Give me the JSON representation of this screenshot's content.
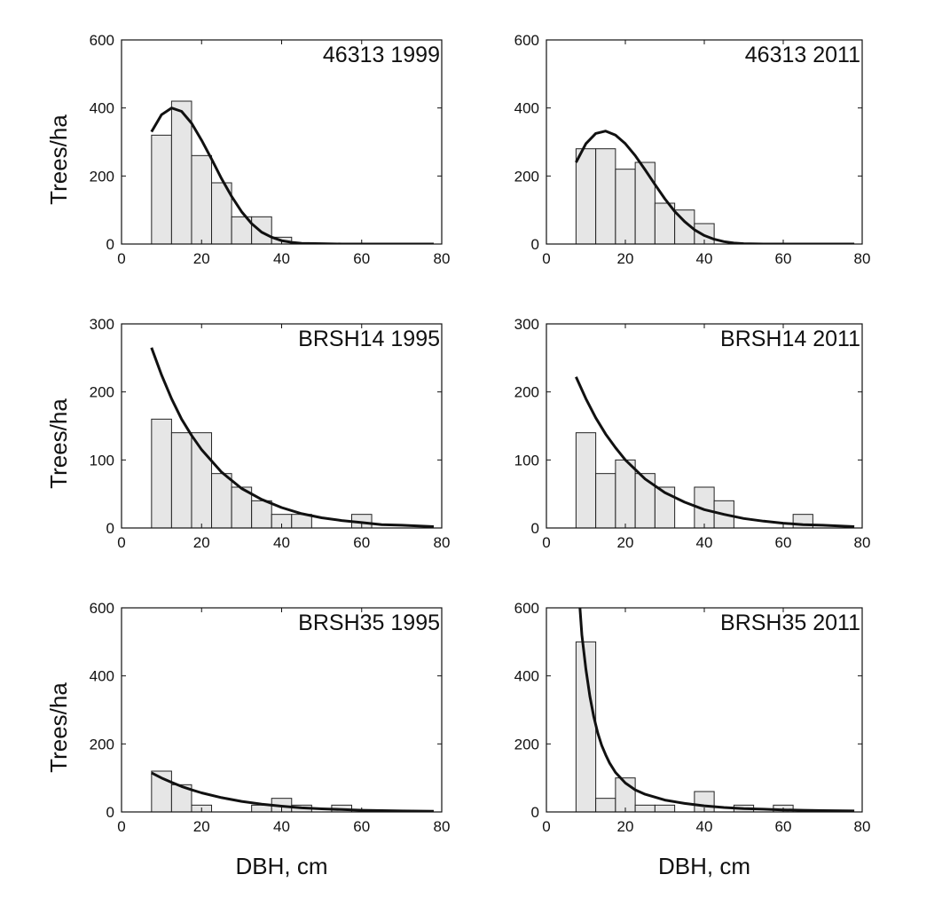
{
  "figure": {
    "colors": {
      "bar_fill": "#e6e6e6",
      "bar_stroke": "#222222",
      "curve": "#111111",
      "frame": "#111111"
    }
  },
  "chart_data": [
    {
      "type": "bar",
      "title": "46313 1999",
      "ylabel": "Trees/ha",
      "xlabel": "",
      "xlim": [
        0,
        80
      ],
      "ylim": [
        0,
        600
      ],
      "xticks": [
        "0",
        "20",
        "40",
        "60",
        "80"
      ],
      "yticks": [
        "0",
        "200",
        "400",
        "600"
      ],
      "bin_width": 5,
      "bin_starts": [
        7.5,
        12.5,
        17.5,
        22.5,
        27.5,
        32.5,
        37.5
      ],
      "values": [
        320,
        420,
        260,
        180,
        80,
        80,
        20
      ],
      "fit_curve": {
        "x": [
          7.5,
          10,
          12.5,
          15,
          17.5,
          20,
          22.5,
          25,
          27.5,
          30,
          32.5,
          35,
          37.5,
          40,
          42.5,
          45,
          50,
          55,
          60,
          65,
          70,
          78
        ],
        "y": [
          330,
          380,
          400,
          390,
          355,
          305,
          250,
          192,
          140,
          95,
          60,
          35,
          20,
          10,
          5,
          2,
          1,
          0,
          0,
          0,
          0,
          0
        ]
      }
    },
    {
      "type": "bar",
      "title": "46313 2011",
      "ylabel": "",
      "xlabel": "",
      "xlim": [
        0,
        80
      ],
      "ylim": [
        0,
        600
      ],
      "xticks": [
        "0",
        "20",
        "40",
        "60",
        "80"
      ],
      "yticks": [
        "0",
        "200",
        "400",
        "600"
      ],
      "bin_width": 5,
      "bin_starts": [
        7.5,
        12.5,
        17.5,
        22.5,
        27.5,
        32.5,
        37.5
      ],
      "values": [
        280,
        280,
        220,
        240,
        120,
        100,
        60
      ],
      "fit_curve": {
        "x": [
          7.5,
          10,
          12.5,
          15,
          17.5,
          20,
          22.5,
          25,
          27.5,
          30,
          32.5,
          35,
          37.5,
          40,
          42.5,
          45,
          47.5,
          50,
          55,
          60,
          65,
          70,
          78
        ],
        "y": [
          240,
          295,
          325,
          332,
          320,
          295,
          260,
          218,
          175,
          133,
          96,
          66,
          42,
          25,
          14,
          7,
          3,
          1,
          0,
          0,
          0,
          0,
          0
        ]
      }
    },
    {
      "type": "bar",
      "title": "BRSH14 1995",
      "ylabel": "Trees/ha",
      "xlabel": "",
      "xlim": [
        0,
        80
      ],
      "ylim": [
        0,
        300
      ],
      "xticks": [
        "0",
        "20",
        "40",
        "60",
        "80"
      ],
      "yticks": [
        "0",
        "100",
        "200",
        "300"
      ],
      "bin_width": 5,
      "bin_starts": [
        7.5,
        12.5,
        17.5,
        22.5,
        27.5,
        32.5,
        37.5,
        42.5,
        57.5
      ],
      "values": [
        160,
        140,
        140,
        80,
        60,
        40,
        20,
        20,
        20
      ],
      "fit_curve": {
        "x": [
          7.5,
          10,
          12.5,
          15,
          17.5,
          20,
          25,
          30,
          35,
          40,
          45,
          50,
          55,
          60,
          65,
          70,
          78
        ],
        "y": [
          265,
          225,
          190,
          160,
          136,
          115,
          82,
          58,
          42,
          30,
          21,
          15,
          11,
          8,
          5,
          4,
          2
        ]
      }
    },
    {
      "type": "bar",
      "title": "BRSH14 2011",
      "ylabel": "",
      "xlabel": "",
      "xlim": [
        0,
        80
      ],
      "ylim": [
        0,
        300
      ],
      "xticks": [
        "0",
        "20",
        "40",
        "60",
        "80"
      ],
      "yticks": [
        "0",
        "100",
        "200",
        "300"
      ],
      "bin_width": 5,
      "bin_starts": [
        7.5,
        12.5,
        17.5,
        22.5,
        27.5,
        37.5,
        42.5,
        62.5
      ],
      "values": [
        140,
        80,
        100,
        80,
        60,
        60,
        40,
        20
      ],
      "fit_curve": {
        "x": [
          7.5,
          10,
          12.5,
          15,
          17.5,
          20,
          25,
          30,
          35,
          40,
          45,
          50,
          55,
          60,
          65,
          70,
          78
        ],
        "y": [
          222,
          190,
          162,
          138,
          118,
          100,
          72,
          52,
          38,
          27,
          20,
          14,
          10,
          7,
          5,
          4,
          2
        ]
      }
    },
    {
      "type": "bar",
      "title": "BRSH35 1995",
      "ylabel": "Trees/ha",
      "xlabel": "DBH, cm",
      "xlim": [
        0,
        80
      ],
      "ylim": [
        0,
        600
      ],
      "xticks": [
        "0",
        "20",
        "40",
        "60",
        "80"
      ],
      "yticks": [
        "0",
        "200",
        "400",
        "600"
      ],
      "bin_width": 5,
      "bin_starts": [
        7.5,
        12.5,
        17.5,
        32.5,
        37.5,
        42.5,
        52.5
      ],
      "values": [
        120,
        80,
        20,
        20,
        40,
        20,
        20
      ],
      "fit_curve": {
        "x": [
          7.5,
          10,
          12.5,
          15,
          17.5,
          20,
          25,
          30,
          35,
          40,
          45,
          50,
          55,
          60,
          65,
          70,
          78
        ],
        "y": [
          115,
          100,
          87,
          75,
          65,
          56,
          42,
          31,
          23,
          17,
          12,
          9,
          7,
          5,
          4,
          3,
          2
        ]
      }
    },
    {
      "type": "bar",
      "title": "BRSH35 2011",
      "ylabel": "",
      "xlabel": "DBH, cm",
      "xlim": [
        0,
        80
      ],
      "ylim": [
        0,
        600
      ],
      "xticks": [
        "0",
        "20",
        "40",
        "60",
        "80"
      ],
      "yticks": [
        "0",
        "200",
        "400",
        "600"
      ],
      "bin_width": 5,
      "bin_starts": [
        7.5,
        12.5,
        17.5,
        22.5,
        27.5,
        37.5,
        47.5,
        57.5
      ],
      "values": [
        500,
        40,
        100,
        20,
        20,
        60,
        20,
        20
      ],
      "fit_curve": {
        "x": [
          8.5,
          9,
          10,
          11,
          12,
          13,
          14,
          15,
          16,
          17.5,
          20,
          22.5,
          25,
          30,
          35,
          40,
          45,
          50,
          55,
          60,
          65,
          70,
          78
        ],
        "y": [
          600,
          520,
          420,
          340,
          280,
          232,
          196,
          168,
          144,
          116,
          85,
          65,
          52,
          35,
          25,
          18,
          13,
          10,
          8,
          6,
          5,
          4,
          3
        ]
      }
    }
  ]
}
